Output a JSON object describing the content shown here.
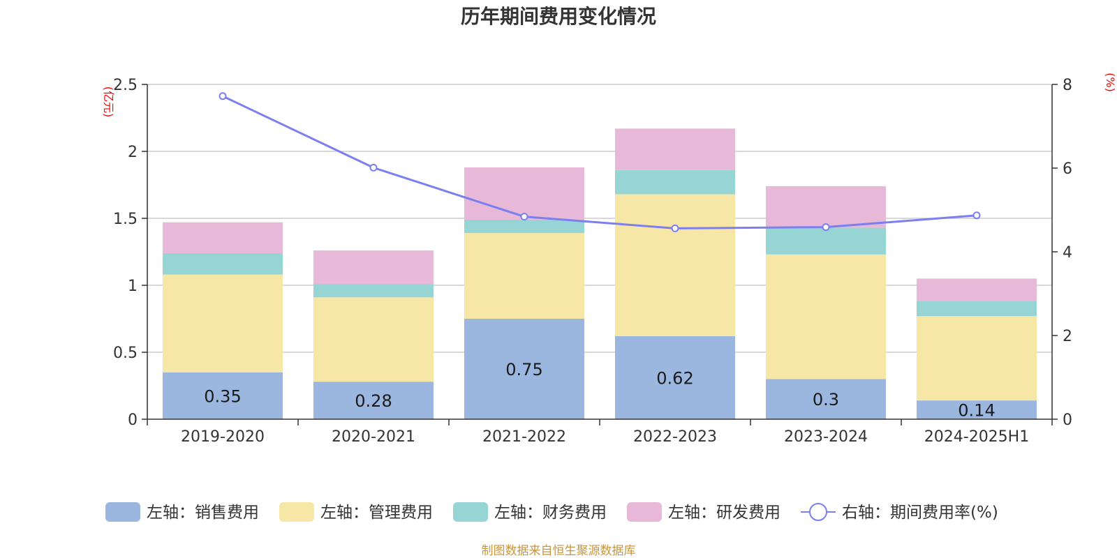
{
  "chart_data": {
    "type": "bar",
    "stacked": true,
    "title": "历年期间费用变化情况",
    "categories": [
      "2019-2020",
      "2020-2021",
      "2021-2022",
      "2022-2023",
      "2023-2024",
      "2024-2025H1"
    ],
    "left_axis": {
      "unit": "(亿元)",
      "ylim": [
        0,
        2.5
      ],
      "ticks": [
        "0",
        "0.5",
        "1",
        "1.5",
        "2",
        "2.5"
      ]
    },
    "right_axis": {
      "unit": "(%)",
      "ylim": [
        0,
        8
      ],
      "ticks": [
        "0",
        "2",
        "4",
        "6",
        "8"
      ]
    },
    "series": [
      {
        "name": "左轴：销售费用",
        "type": "bar",
        "color": "#9bb7e0",
        "values": [
          0.35,
          0.28,
          0.75,
          0.62,
          0.3,
          0.14
        ],
        "labels": [
          "0.35",
          "0.28",
          "0.75",
          "0.62",
          "0.3",
          "0.14"
        ]
      },
      {
        "name": "左轴：管理费用",
        "type": "bar",
        "color": "#f7e7a6",
        "values": [
          0.73,
          0.63,
          0.64,
          1.06,
          0.93,
          0.63
        ]
      },
      {
        "name": "左轴：财务费用",
        "type": "bar",
        "color": "#97d4d4",
        "values": [
          0.16,
          0.1,
          0.1,
          0.18,
          0.2,
          0.11
        ]
      },
      {
        "name": "左轴：研发费用",
        "type": "bar",
        "color": "#e7b8d8",
        "values": [
          0.23,
          0.25,
          0.39,
          0.31,
          0.31,
          0.17
        ]
      },
      {
        "name": "右轴：期间费用率(%)",
        "type": "line",
        "color": "#7b7ff0",
        "values": [
          7.72,
          6.01,
          4.84,
          4.56,
          4.59,
          4.87
        ]
      }
    ],
    "legend_position": "bottom",
    "grid": true
  },
  "source_note": "制图数据来自恒生聚源数据库"
}
